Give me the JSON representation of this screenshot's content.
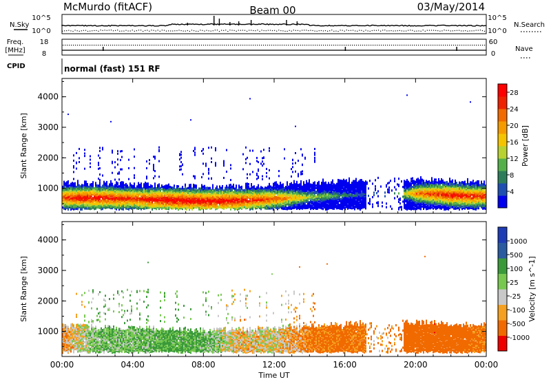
{
  "header": {
    "station": "McMurdo (fitACF)",
    "beam": "Beam 00",
    "date": "03/May/2014"
  },
  "noise_panel": {
    "left_label": "N.Sky",
    "right_label": "N.Search",
    "left_ticks": [
      "10^5",
      "10^0"
    ],
    "right_ticks": [
      "10^5",
      "10^0"
    ]
  },
  "freq_panel": {
    "left_label_1": "Freq.",
    "left_label_2": "[MHz]",
    "right_label": "Nave",
    "left_ticks": [
      "18",
      "8"
    ],
    "right_ticks": [
      "60",
      "0"
    ]
  },
  "cpid": {
    "label": "CPID",
    "value": "normal (fast) 151 RF"
  },
  "colors": {
    "power": [
      "#0000ee",
      "#1f4fb0",
      "#2e7d5a",
      "#55b04a",
      "#b8d232",
      "#f5c400",
      "#f59b00",
      "#f06a00",
      "#ee2200",
      "#ff0000"
    ],
    "velocity": [
      "#ee0000",
      "#f06a00",
      "#f5a020",
      "#c8c8c8",
      "#78c850",
      "#3a9a3a",
      "#2a5aa0",
      "#1e3cb4"
    ]
  },
  "chart_data": [
    {
      "type": "heatmap",
      "title": "Power",
      "ylabel": "Slant Range [km]",
      "xlabel": "",
      "x_ticks": [
        "00:00",
        "04:00",
        "08:00",
        "12:00",
        "16:00",
        "20:00",
        "00:00"
      ],
      "y_ticks": [
        "1000",
        "2000",
        "3000",
        "4000"
      ],
      "ylim": [
        180,
        4600
      ],
      "colorbar": {
        "label": "Power [dB]",
        "ticks": [
          "4",
          "8",
          "12",
          "16",
          "20",
          "24",
          "28"
        ],
        "range": [
          0,
          30
        ]
      },
      "series": [
        {
          "hours": [
            0,
            1,
            2,
            3,
            4,
            5,
            6,
            7,
            8,
            9,
            10,
            11,
            12,
            13,
            14,
            15,
            16,
            17,
            18,
            19,
            20,
            21,
            22,
            23,
            24
          ],
          "core_range_km": [
            700,
            700,
            690,
            680,
            670,
            640,
            620,
            600,
            590,
            590,
            600,
            630,
            660,
            690,
            720,
            760,
            780,
            800,
            800,
            820,
            840,
            820,
            780,
            750,
            750
          ],
          "peak_power_db": [
            26,
            28,
            28,
            27,
            26,
            28,
            29,
            29,
            29,
            29,
            28,
            26,
            24,
            20,
            14,
            12,
            8,
            6,
            6,
            10,
            22,
            26,
            28,
            27,
            26
          ]
        }
      ]
    },
    {
      "type": "heatmap",
      "title": "Velocity",
      "ylabel": "Slant Range [km]",
      "xlabel": "Time UT",
      "x_ticks": [
        "00:00",
        "04:00",
        "08:00",
        "12:00",
        "16:00",
        "20:00",
        "00:00"
      ],
      "y_ticks": [
        "1000",
        "2000",
        "3000",
        "4000"
      ],
      "ylim": [
        180,
        4600
      ],
      "colorbar": {
        "label": "Velocity [m s^-1]",
        "ticks": [
          "1000",
          "500",
          "100",
          "25",
          "-25",
          "-100",
          "-500",
          "-1000"
        ]
      },
      "series": [
        {
          "hours": [
            0,
            2,
            4,
            6,
            8,
            10,
            12,
            14,
            16,
            18,
            20,
            21,
            22,
            23,
            24
          ],
          "dominant_velocity_ms": [
            -100,
            100,
            100,
            150,
            120,
            -50,
            0,
            -150,
            -200,
            -100,
            -300,
            -400,
            -300,
            -200,
            -150
          ]
        }
      ]
    }
  ]
}
